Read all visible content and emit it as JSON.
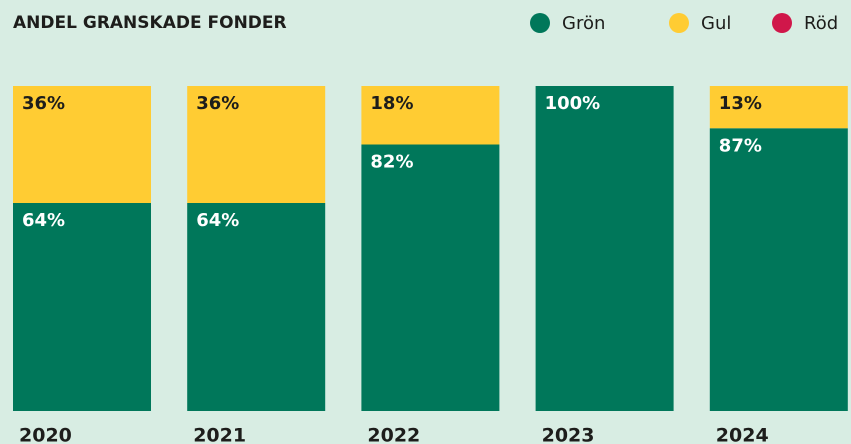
{
  "chart_data": {
    "type": "stacked_bar",
    "title": "ANDEL GRANSKADE FONDER",
    "categories": [
      "2020",
      "2021",
      "2022",
      "2023",
      "2024"
    ],
    "series": [
      {
        "name": "Grön",
        "color": "#00775a",
        "values": [
          64,
          64,
          82,
          100,
          87
        ],
        "value_labels": [
          "64%",
          "64%",
          "82%",
          "100%",
          "87%"
        ]
      },
      {
        "name": "Gul",
        "color": "#ffcc33",
        "values": [
          36,
          36,
          18,
          0,
          13
        ],
        "value_labels": [
          "36%",
          "36%",
          "18%",
          null,
          "13%"
        ]
      },
      {
        "name": "Röd",
        "color": "#d0174a",
        "values": [
          0,
          0,
          0,
          0,
          0
        ]
      }
    ],
    "ylim": [
      0,
      100
    ]
  }
}
